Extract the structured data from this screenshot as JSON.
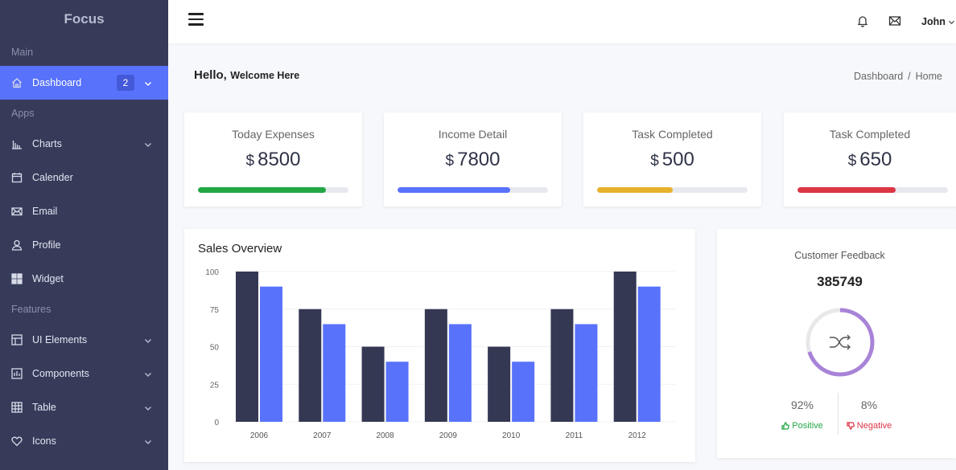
{
  "sidebar": {
    "brand": "Focus",
    "sections": [
      {
        "label": "Main",
        "items": [
          {
            "label": "Dashboard",
            "icon": "home-icon",
            "badge": "2",
            "chevron": true,
            "active": true
          }
        ]
      },
      {
        "label": "Apps",
        "items": [
          {
            "label": "Charts",
            "icon": "bar-chart-icon",
            "chevron": true
          },
          {
            "label": "Calender",
            "icon": "calendar-icon",
            "chevron": false
          },
          {
            "label": "Email",
            "icon": "mail-icon",
            "chevron": false
          },
          {
            "label": "Profile",
            "icon": "user-icon",
            "chevron": false
          },
          {
            "label": "Widget",
            "icon": "widget-grid-icon",
            "chevron": false
          }
        ]
      },
      {
        "label": "Features",
        "items": [
          {
            "label": "UI Elements",
            "icon": "layout-icon",
            "chevron": true
          },
          {
            "label": "Components",
            "icon": "components-icon",
            "chevron": true
          },
          {
            "label": "Table",
            "icon": "table-icon",
            "chevron": true
          },
          {
            "label": "Icons",
            "icon": "heart-icon",
            "chevron": true
          }
        ]
      }
    ]
  },
  "topbar": {
    "menu_icon": "hamburger-icon",
    "notification_icon": "bell-icon",
    "messages_icon": "envelope-icon",
    "user_name": "John"
  },
  "greeting": {
    "hello": "Hello,",
    "welcome": "Welcome Here"
  },
  "breadcrumb": {
    "items": [
      "Dashboard",
      "Home"
    ],
    "separator": "/"
  },
  "stats": [
    {
      "title": "Today Expenses",
      "currency": "$",
      "value": "8500",
      "progress": 0.85,
      "color": "#22a745"
    },
    {
      "title": "Income Detail",
      "currency": "$",
      "value": "7800",
      "progress": 0.75,
      "color": "#5872fb"
    },
    {
      "title": "Task Completed",
      "currency": "$",
      "value": "500",
      "progress": 0.5,
      "color": "#e7b22b"
    },
    {
      "title": "Task Completed",
      "currency": "$",
      "value": "650",
      "progress": 0.65,
      "color": "#dc3545"
    }
  ],
  "sales": {
    "title": "Sales Overview",
    "chart_data": {
      "type": "bar",
      "categories": [
        "2006",
        "2007",
        "2008",
        "2009",
        "2010",
        "2011",
        "2012"
      ],
      "series": [
        {
          "values": [
            100,
            75,
            50,
            75,
            50,
            75,
            100
          ],
          "color": "#343853"
        },
        {
          "values": [
            90,
            65,
            40,
            65,
            40,
            65,
            90
          ],
          "color": "#5872fb"
        }
      ],
      "ylim": [
        0,
        100
      ],
      "yticks": [
        0,
        25,
        50,
        75,
        100
      ],
      "grid": true
    }
  },
  "feedback": {
    "title": "Customer Feedback",
    "value": "385749",
    "donut_fraction": 0.7,
    "donut_color": "#a883d8",
    "center_icon": "shuffle-icon",
    "positive": {
      "pct": "92%",
      "label": "Positive",
      "color": "#22a745",
      "icon": "thumb-up-icon"
    },
    "negative": {
      "pct": "8%",
      "label": "Negative",
      "color": "#dc3545",
      "icon": "thumb-down-icon"
    }
  }
}
